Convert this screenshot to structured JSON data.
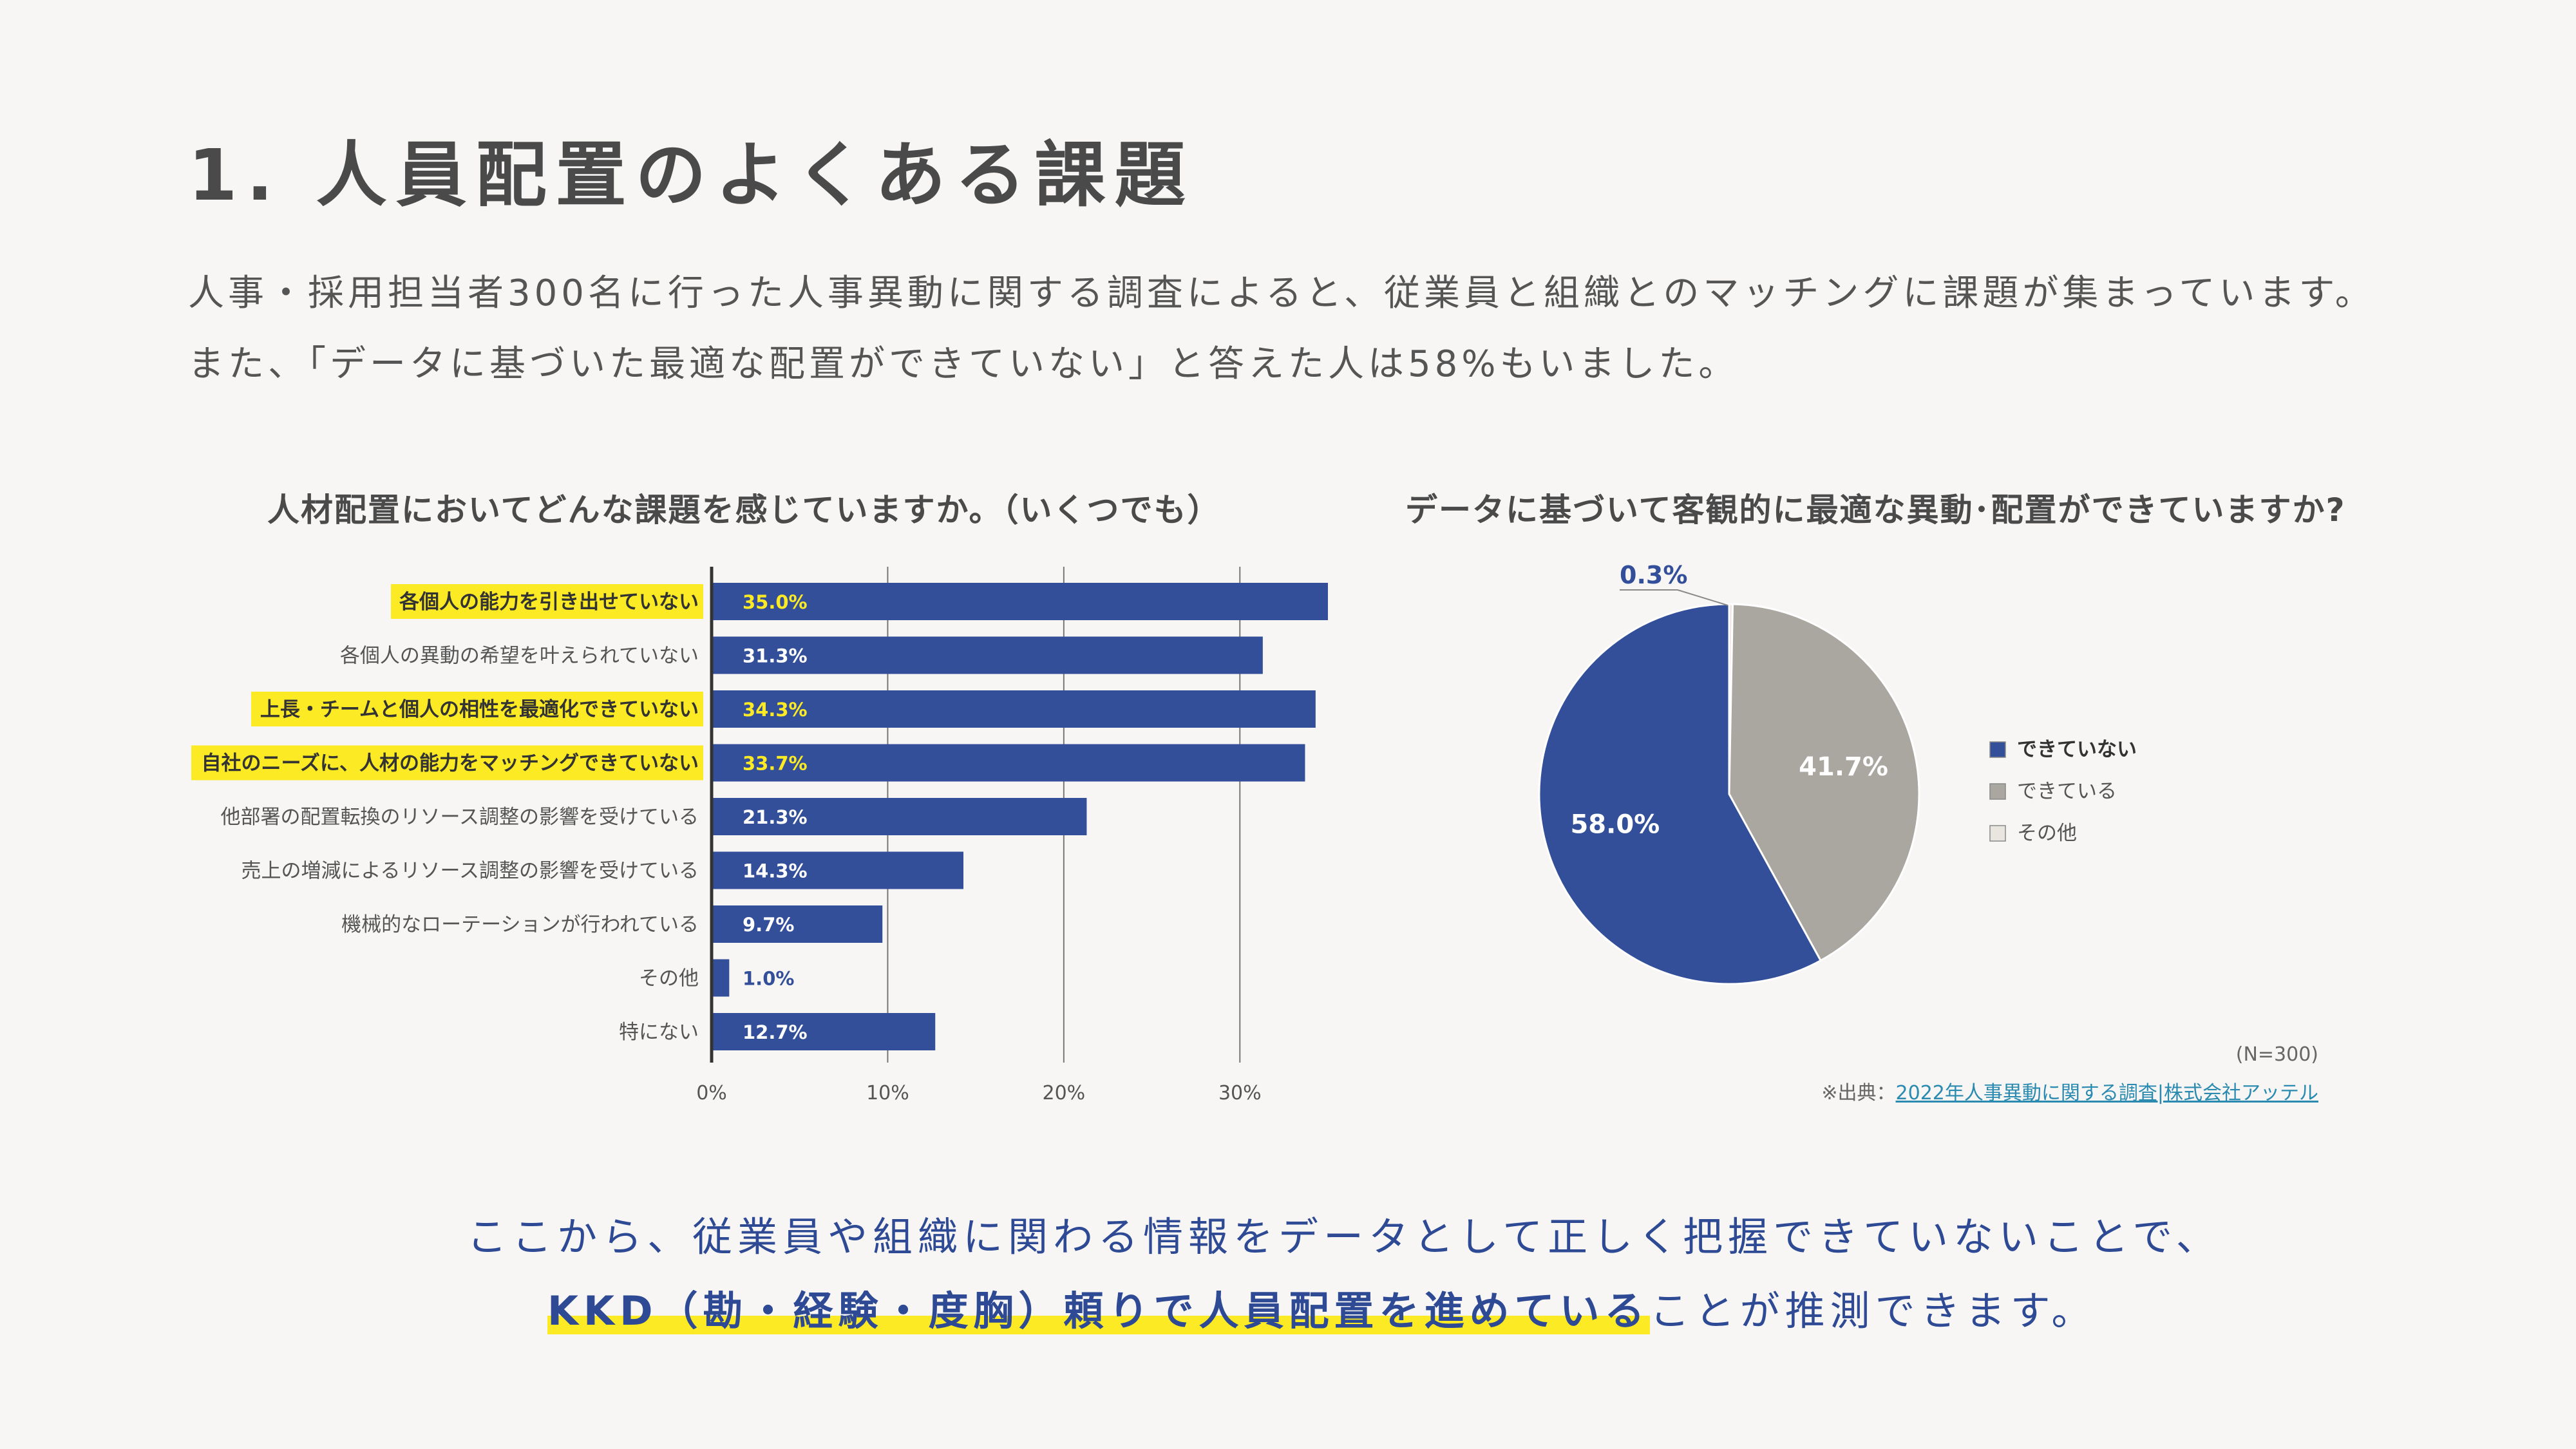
{
  "title": "1. 人員配置のよくある課題",
  "intro": {
    "line1": "人事・採用担当者300名に行った人事異動に関する調査によると、従業員と組織とのマッチングに課題が集まっています。",
    "line2": "また、「データに基づいた最適な配置ができていない」と答えた人は58%もいました。"
  },
  "colors": {
    "bar": "#334f9a",
    "highlight": "#fbea24",
    "pie_not": "#334f9a",
    "pie_can": "#aaa6a0",
    "pie_other": "#e9e6e0",
    "conclusion_text": "#2e4a95"
  },
  "chart_data": [
    {
      "type": "bar",
      "orientation": "horizontal",
      "title": "人材配置においてどんな課題を感じていますか。（いくつでも）",
      "categories": [
        "各個人の能力を引き出せていない",
        "各個人の異動の希望を叶えられていない",
        "上長・チームと個人の相性を最適化できていない",
        "自社のニーズに、人材の能力をマッチングできていない",
        "他部署の配置転換のリソース調整の影響を受けている",
        "売上の増減によるリソース調整の影響を受けている",
        "機械的なローテーションが行われている",
        "その他",
        "特にない"
      ],
      "values": [
        35.0,
        31.3,
        34.3,
        33.7,
        21.3,
        14.3,
        9.7,
        1.0,
        12.7
      ],
      "value_labels": [
        "35.0%",
        "31.3%",
        "34.3%",
        "33.7%",
        "21.3%",
        "14.3%",
        "9.7%",
        "1.0%",
        "12.7%"
      ],
      "highlighted": [
        true,
        false,
        true,
        true,
        false,
        false,
        false,
        false,
        false
      ],
      "xlim": [
        0,
        37
      ],
      "xticks": [
        0,
        10,
        20,
        30
      ],
      "xtick_labels": [
        "0%",
        "10%",
        "20%",
        "30%"
      ],
      "grid": true
    },
    {
      "type": "pie",
      "title": "データに基づいて客観的に最適な異動･配置ができていますか?",
      "labels": [
        "できていない",
        "できている",
        "その他"
      ],
      "values": [
        58.0,
        41.7,
        0.3
      ],
      "value_labels": [
        "58.0%",
        "41.7%",
        "0.3%"
      ],
      "legend": "right"
    }
  ],
  "n_note": "(N=300)",
  "source": {
    "prefix": "※出典：",
    "link_text": "2022年人事異動に関する調査|株式会社アッテル"
  },
  "conclusion": {
    "line1": "ここから、従業員や組織に関わる情報をデータとして正しく把握できていないことで、",
    "line2_highlight": "KKD（勘・経験・度胸）頼りで人員配置を進めている",
    "line2_rest": "ことが推測できます。"
  }
}
